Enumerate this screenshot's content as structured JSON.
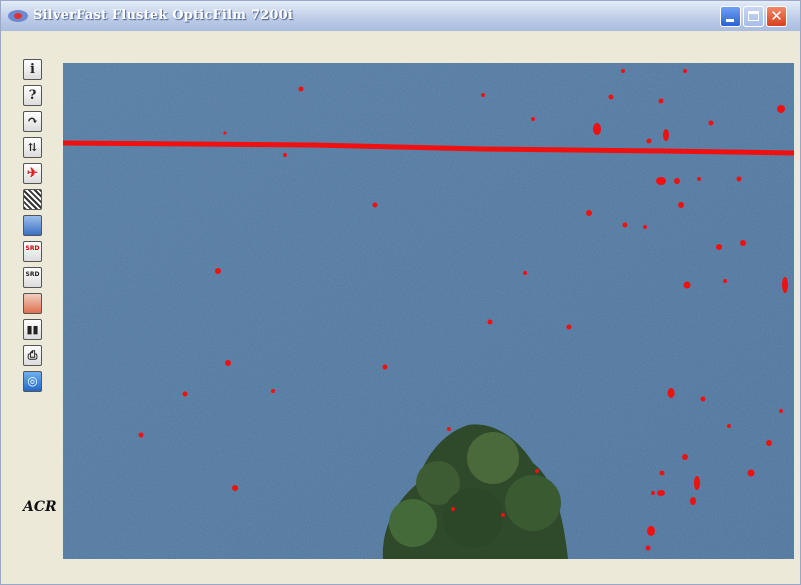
{
  "window": {
    "title": "SilverFast Flustek OpticFilm 7200i"
  },
  "toolbar": {
    "info": "i",
    "help": "?",
    "srd": "SRD",
    "srd_start": "SRD",
    "label": "ACR"
  }
}
